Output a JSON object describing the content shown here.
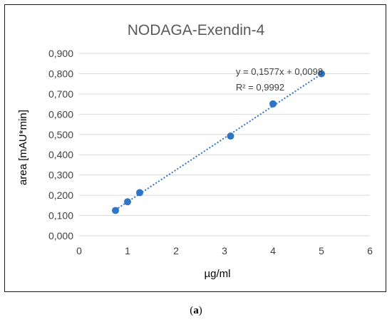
{
  "chart_data": {
    "type": "scatter",
    "title": "NODAGA-Exendin-4",
    "xlabel": "µg/ml",
    "ylabel": "area [mAU*min]",
    "xlim": [
      0,
      6
    ],
    "ylim": [
      0,
      0.9
    ],
    "x_ticks": [
      "0",
      "1",
      "2",
      "3",
      "4",
      "5",
      "6"
    ],
    "y_ticks": [
      "0,000",
      "0,100",
      "0,200",
      "0,300",
      "0,400",
      "0,500",
      "0,600",
      "0,700",
      "0,800",
      "0,900"
    ],
    "grid": "horizontal",
    "series": [
      {
        "x": [
          0.75,
          1.0,
          1.25,
          3.125,
          4.0,
          5.0
        ],
        "y": [
          0.125,
          0.168,
          0.213,
          0.492,
          0.651,
          0.8
        ],
        "marker_color": "#2e75c6"
      }
    ],
    "trendline": {
      "type": "linear",
      "slope": 0.1577,
      "intercept": 0.0098,
      "color": "#2e75c6",
      "style": "dotted",
      "equation": "y = 0,1577x + 0,0098",
      "r2": "R² = 0,9992"
    }
  },
  "caption": {
    "open": "(",
    "letter": "a",
    "close": ")"
  }
}
